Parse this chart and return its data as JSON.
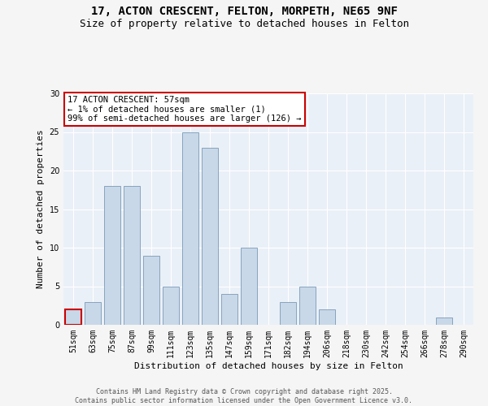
{
  "title_line1": "17, ACTON CRESCENT, FELTON, MORPETH, NE65 9NF",
  "title_line2": "Size of property relative to detached houses in Felton",
  "xlabel": "Distribution of detached houses by size in Felton",
  "ylabel": "Number of detached properties",
  "categories": [
    "51sqm",
    "63sqm",
    "75sqm",
    "87sqm",
    "99sqm",
    "111sqm",
    "123sqm",
    "135sqm",
    "147sqm",
    "159sqm",
    "171sqm",
    "182sqm",
    "194sqm",
    "206sqm",
    "218sqm",
    "230sqm",
    "242sqm",
    "254sqm",
    "266sqm",
    "278sqm",
    "290sqm"
  ],
  "values": [
    2,
    3,
    18,
    18,
    9,
    5,
    25,
    23,
    4,
    10,
    0,
    3,
    5,
    2,
    0,
    0,
    0,
    0,
    0,
    1,
    0
  ],
  "highlight_index": 0,
  "bar_color": "#c8d8e8",
  "bar_edge_color": "#7a9ab8",
  "highlight_bar_edge_color": "#cc0000",
  "annotation_box_text": "17 ACTON CRESCENT: 57sqm\n← 1% of detached houses are smaller (1)\n99% of semi-detached houses are larger (126) →",
  "annotation_box_color": "#ffffff",
  "annotation_box_edge_color": "#cc0000",
  "ylim": [
    0,
    30
  ],
  "yticks": [
    0,
    5,
    10,
    15,
    20,
    25,
    30
  ],
  "background_color": "#eaf0f7",
  "grid_color": "#ffffff",
  "footer_text": "Contains HM Land Registry data © Crown copyright and database right 2025.\nContains public sector information licensed under the Open Government Licence v3.0.",
  "title_fontsize": 10,
  "subtitle_fontsize": 9,
  "axis_label_fontsize": 8,
  "tick_fontsize": 7,
  "annotation_fontsize": 7.5,
  "footer_fontsize": 6
}
